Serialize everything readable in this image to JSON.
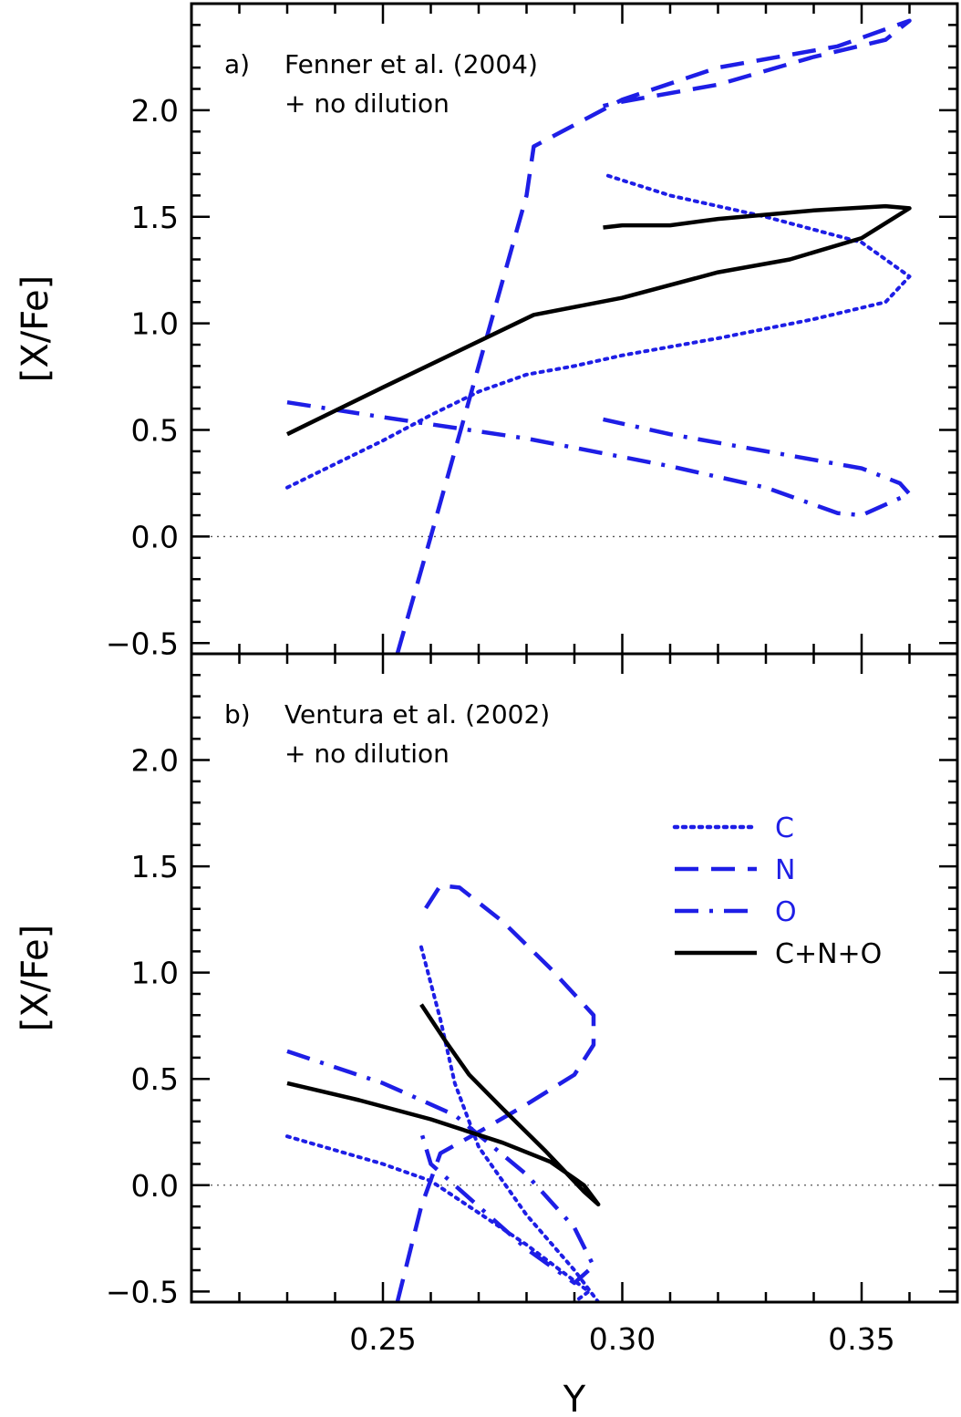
{
  "chart_data": [
    {
      "type": "line",
      "panel_label": "a)",
      "annotation": [
        "Fenner et al. (2004)",
        "+ no dilution"
      ],
      "xlabel": "",
      "ylabel": "[X/Fe]",
      "xlim": [
        0.21,
        0.37
      ],
      "ylim": [
        -0.55,
        2.5
      ],
      "yticks": [
        "−0.5",
        "0.0",
        "0.5",
        "1.0",
        "1.5",
        "2.0"
      ],
      "ytick_values": [
        -0.5,
        0.0,
        0.5,
        1.0,
        1.5,
        2.0
      ],
      "reference_line": 0.0,
      "colors": {
        "C": "#1e1ee6",
        "N": "#1e1ee6",
        "O": "#1e1ee6",
        "CNO": "#000000"
      },
      "series": [
        {
          "style": "dotted",
          "color": "#1e1ee6",
          "points": [
            [
              0.23,
              0.23
            ],
            [
              0.24,
              0.34
            ],
            [
              0.25,
              0.45
            ],
            [
              0.26,
              0.57
            ],
            [
              0.27,
              0.68
            ],
            [
              0.28,
              0.76
            ],
            [
              0.29,
              0.8
            ],
            [
              0.3,
              0.85
            ],
            [
              0.32,
              0.93
            ],
            [
              0.34,
              1.02
            ],
            [
              0.355,
              1.1
            ],
            [
              0.36,
              1.22
            ],
            [
              0.35,
              1.38
            ],
            [
              0.33,
              1.5
            ],
            [
              0.31,
              1.6
            ],
            [
              0.296,
              1.7
            ]
          ]
        },
        {
          "style": "dashed",
          "color": "#1e1ee6",
          "points": [
            [
              0.253,
              -0.55
            ],
            [
              0.26,
              0.0
            ],
            [
              0.27,
              0.8
            ],
            [
              0.28,
              1.6
            ],
            [
              0.2815,
              1.83
            ],
            [
              0.3,
              2.05
            ],
            [
              0.32,
              2.2
            ],
            [
              0.345,
              2.3
            ],
            [
              0.36,
              2.42
            ],
            [
              0.355,
              2.33
            ],
            [
              0.34,
              2.25
            ],
            [
              0.32,
              2.12
            ],
            [
              0.3,
              2.04
            ],
            [
              0.296,
              2.02
            ]
          ]
        },
        {
          "style": "dashdot",
          "color": "#1e1ee6",
          "points": [
            [
              0.23,
              0.63
            ],
            [
              0.25,
              0.56
            ],
            [
              0.28,
              0.46
            ],
            [
              0.31,
              0.33
            ],
            [
              0.33,
              0.23
            ],
            [
              0.345,
              0.11
            ],
            [
              0.35,
              0.1
            ],
            [
              0.36,
              0.2
            ],
            [
              0.358,
              0.25
            ],
            [
              0.35,
              0.32
            ],
            [
              0.33,
              0.4
            ],
            [
              0.31,
              0.48
            ],
            [
              0.296,
              0.55
            ]
          ]
        },
        {
          "style": "solid",
          "color": "#000000",
          "points": [
            [
              0.23,
              0.48
            ],
            [
              0.25,
              0.7
            ],
            [
              0.2815,
              1.04
            ],
            [
              0.3,
              1.12
            ],
            [
              0.32,
              1.24
            ],
            [
              0.335,
              1.3
            ],
            [
              0.35,
              1.4
            ],
            [
              0.36,
              1.54
            ],
            [
              0.355,
              1.55
            ],
            [
              0.34,
              1.53
            ],
            [
              0.32,
              1.49
            ],
            [
              0.31,
              1.46
            ],
            [
              0.3,
              1.46
            ],
            [
              0.296,
              1.45
            ]
          ]
        }
      ]
    },
    {
      "type": "line",
      "panel_label": "b)",
      "annotation": [
        "Ventura et al. (2002)",
        "+ no dilution"
      ],
      "xlabel": "Y",
      "ylabel": "[X/Fe]",
      "xlim": [
        0.21,
        0.37
      ],
      "ylim": [
        -0.55,
        2.5
      ],
      "xticks": [
        "0.25",
        "0.30",
        "0.35"
      ],
      "xtick_values": [
        0.25,
        0.3,
        0.35
      ],
      "yticks": [
        "−0.5",
        "0.0",
        "0.5",
        "1.0",
        "1.5",
        "2.0"
      ],
      "ytick_values": [
        -0.5,
        0.0,
        0.5,
        1.0,
        1.5,
        2.0
      ],
      "reference_line": 0.0,
      "legend": {
        "position": "right",
        "items": [
          {
            "label": "C",
            "style": "dotted",
            "color": "#1e1ee6"
          },
          {
            "label": "N",
            "style": "dashed",
            "color": "#1e1ee6"
          },
          {
            "label": "O",
            "style": "dashdot",
            "color": "#1e1ee6"
          },
          {
            "label": "C+N+O",
            "style": "solid",
            "color": "#000000"
          }
        ]
      },
      "series": [
        {
          "style": "dotted",
          "color": "#1e1ee6",
          "points": [
            [
              0.23,
              0.23
            ],
            [
              0.25,
              0.1
            ],
            [
              0.26,
              0.02
            ],
            [
              0.27,
              -0.13
            ],
            [
              0.28,
              -0.28
            ],
            [
              0.29,
              -0.45
            ],
            [
              0.293,
              -0.5
            ],
            [
              0.29,
              -0.55
            ]
          ]
        },
        {
          "style": "dotted",
          "color": "#1e1ee6",
          "points": [
            [
              0.258,
              1.12
            ],
            [
              0.262,
              0.78
            ],
            [
              0.265,
              0.48
            ],
            [
              0.27,
              0.18
            ],
            [
              0.28,
              -0.14
            ],
            [
              0.29,
              -0.4
            ],
            [
              0.295,
              -0.55
            ]
          ]
        },
        {
          "style": "dashed",
          "color": "#1e1ee6",
          "points": [
            [
              0.253,
              -0.55
            ],
            [
              0.258,
              -0.1
            ],
            [
              0.262,
              0.15
            ],
            [
              0.27,
              0.25
            ],
            [
              0.28,
              0.38
            ],
            [
              0.29,
              0.52
            ],
            [
              0.294,
              0.66
            ],
            [
              0.294,
              0.8
            ],
            [
              0.285,
              1.02
            ],
            [
              0.275,
              1.24
            ],
            [
              0.266,
              1.4
            ],
            [
              0.262,
              1.41
            ],
            [
              0.258,
              1.27
            ]
          ]
        },
        {
          "style": "dashdot",
          "color": "#1e1ee6",
          "points": [
            [
              0.23,
              0.63
            ],
            [
              0.25,
              0.48
            ],
            [
              0.265,
              0.33
            ],
            [
              0.28,
              0.05
            ],
            [
              0.29,
              -0.2
            ],
            [
              0.294,
              -0.38
            ],
            [
              0.29,
              -0.46
            ],
            [
              0.28,
              -0.3
            ],
            [
              0.27,
              -0.1
            ],
            [
              0.26,
              0.1
            ],
            [
              0.258,
              0.25
            ]
          ]
        },
        {
          "style": "solid",
          "color": "#000000",
          "points": [
            [
              0.23,
              0.48
            ],
            [
              0.245,
              0.4
            ],
            [
              0.26,
              0.31
            ],
            [
              0.275,
              0.2
            ],
            [
              0.285,
              0.11
            ],
            [
              0.292,
              0.0
            ],
            [
              0.295,
              -0.09
            ],
            [
              0.292,
              -0.03
            ],
            [
              0.284,
              0.16
            ],
            [
              0.275,
              0.36
            ],
            [
              0.268,
              0.52
            ],
            [
              0.263,
              0.68
            ],
            [
              0.258,
              0.85
            ]
          ]
        }
      ]
    }
  ]
}
